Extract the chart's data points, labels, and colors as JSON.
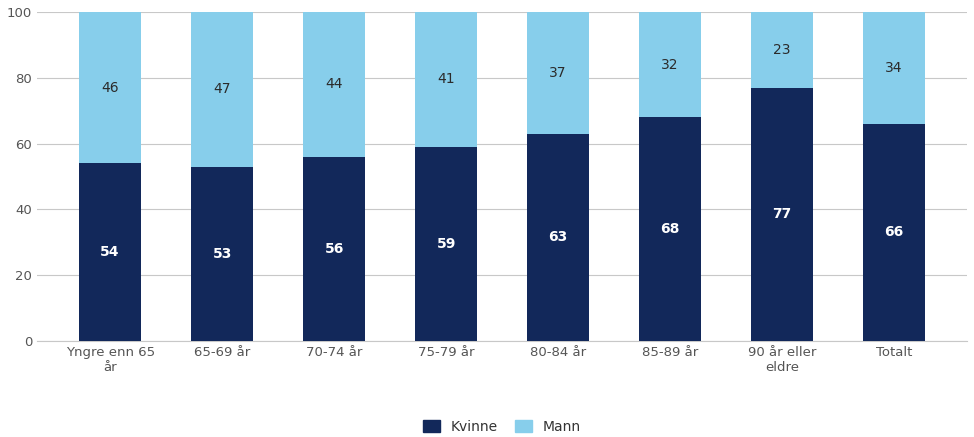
{
  "categories": [
    "Yngre enn 65\når",
    "65-69 år",
    "70-74 år",
    "75-79 år",
    "80-84 år",
    "85-89 år",
    "90 år eller\neldre",
    "Totalt"
  ],
  "kvinne_values": [
    54,
    53,
    56,
    59,
    63,
    68,
    77,
    66
  ],
  "mann_values": [
    46,
    47,
    44,
    41,
    37,
    32,
    23,
    34
  ],
  "kvinne_color": "#12285a",
  "mann_color": "#87ceeb",
  "ylim": [
    0,
    100
  ],
  "yticks": [
    0,
    20,
    40,
    60,
    80,
    100
  ],
  "legend_labels": [
    "Kvinne",
    "Mann"
  ],
  "text_color_white": "#ffffff",
  "text_color_dark": "#2b2b2b",
  "bar_width": 0.55,
  "fontsize_bar": 10,
  "fontsize_tick": 9.5,
  "fontsize_legend": 10,
  "background_color": "#ffffff",
  "grid_color": "#c8c8c8"
}
